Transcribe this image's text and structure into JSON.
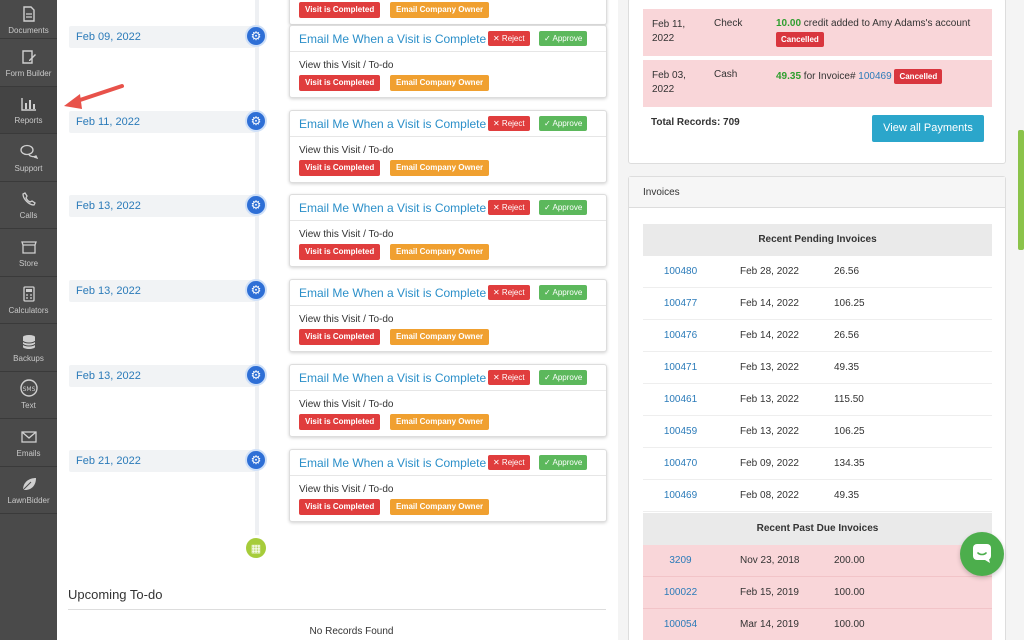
{
  "sidebar": {
    "items": [
      {
        "label": "Documents",
        "icon": "document-icon"
      },
      {
        "label": "Form Builder",
        "icon": "form-builder-icon"
      },
      {
        "label": "Reports",
        "icon": "bar-chart-icon"
      },
      {
        "label": "Support",
        "icon": "chat-bubbles-icon"
      },
      {
        "label": "Calls",
        "icon": "phone-icon"
      },
      {
        "label": "Store",
        "icon": "store-icon"
      },
      {
        "label": "Calculators",
        "icon": "calculator-icon"
      },
      {
        "label": "Backups",
        "icon": "database-icon"
      },
      {
        "label": "Text",
        "icon": "sms-icon"
      },
      {
        "label": "Emails",
        "icon": "envelope-icon"
      },
      {
        "label": "LawnBidder",
        "icon": "leaf-icon"
      }
    ]
  },
  "timeline": {
    "top_partial": {
      "label_red": "Visit is Completed",
      "label_orange": "Email Company Owner"
    },
    "items": [
      {
        "date": "Feb 09, 2022",
        "title": "Email Me When a Visit is Complete",
        "reject": "✕ Reject",
        "approve": "✓ Approve",
        "subtitle": "View this Visit / To-do",
        "label_red": "Visit is Completed",
        "label_orange": "Email Company Owner"
      },
      {
        "date": "Feb 11, 2022",
        "title": "Email Me When a Visit is Complete",
        "reject": "✕ Reject",
        "approve": "✓ Approve",
        "subtitle": "View this Visit / To-do",
        "label_red": "Visit is Completed",
        "label_orange": "Email Company Owner"
      },
      {
        "date": "Feb 13, 2022",
        "title": "Email Me When a Visit is Complete",
        "reject": "✕ Reject",
        "approve": "✓ Approve",
        "subtitle": "View this Visit / To-do",
        "label_red": "Visit is Completed",
        "label_orange": "Email Company Owner"
      },
      {
        "date": "Feb 13, 2022",
        "title": "Email Me When a Visit is Complete",
        "reject": "✕ Reject",
        "approve": "✓ Approve",
        "subtitle": "View this Visit / To-do",
        "label_red": "Visit is Completed",
        "label_orange": "Email Company Owner"
      },
      {
        "date": "Feb 13, 2022",
        "title": "Email Me When a Visit is Complete",
        "reject": "✕ Reject",
        "approve": "✓ Approve",
        "subtitle": "View this Visit / To-do",
        "label_red": "Visit is Completed",
        "label_orange": "Email Company Owner"
      },
      {
        "date": "Feb 21, 2022",
        "title": "Email Me When a Visit is Complete",
        "reject": "✕ Reject",
        "approve": "✓ Approve",
        "subtitle": "View this Visit / To-do",
        "label_red": "Visit is Completed",
        "label_orange": "Email Company Owner"
      }
    ]
  },
  "upcoming": {
    "title": "Upcoming To-do",
    "empty_text": "No Records Found"
  },
  "payments": {
    "rows": [
      {
        "date_line1": "Feb 11,",
        "date_line2": "2022",
        "method": "Check",
        "amount": "10.00",
        "desc": " credit added to Amy Adams's account",
        "invoice": "",
        "status": "Cancelled"
      },
      {
        "date_line1": "Feb 03,",
        "date_line2": "2022",
        "method": "Cash",
        "amount": "49.35",
        "desc": " for Invoice# ",
        "invoice": "100469",
        "status": "Cancelled"
      }
    ],
    "total_label": "Total Records: 709",
    "view_all": "View all Payments"
  },
  "invoices": {
    "title": "Invoices",
    "pending_header": "Recent Pending Invoices",
    "pending": [
      {
        "num": "100480",
        "date": "Feb 28, 2022",
        "amount": "26.56"
      },
      {
        "num": "100477",
        "date": "Feb 14, 2022",
        "amount": "106.25"
      },
      {
        "num": "100476",
        "date": "Feb 14, 2022",
        "amount": "26.56"
      },
      {
        "num": "100471",
        "date": "Feb 13, 2022",
        "amount": "49.35"
      },
      {
        "num": "100461",
        "date": "Feb 13, 2022",
        "amount": "115.50"
      },
      {
        "num": "100459",
        "date": "Feb 13, 2022",
        "amount": "106.25"
      },
      {
        "num": "100470",
        "date": "Feb 09, 2022",
        "amount": "134.35"
      },
      {
        "num": "100469",
        "date": "Feb 08, 2022",
        "amount": "49.35"
      }
    ],
    "pastdue_header": "Recent Past Due Invoices",
    "pastdue": [
      {
        "num": "3209",
        "date": "Nov 23, 2018",
        "amount": "200.00"
      },
      {
        "num": "100022",
        "date": "Feb 15, 2019",
        "amount": "100.00"
      },
      {
        "num": "100054",
        "date": "Mar 14, 2019",
        "amount": "100.00"
      }
    ]
  },
  "colors": {
    "sidebar_bg": "#4a4a4a",
    "link_blue": "#2b8fc9",
    "reject_red": "#e03d3d",
    "approve_green": "#5cb85c",
    "label_orange": "#f0a030",
    "pastdue_pink": "#f9d6d9",
    "button_teal": "#2ba6cb",
    "annotation_arrow": "#e8524a"
  }
}
